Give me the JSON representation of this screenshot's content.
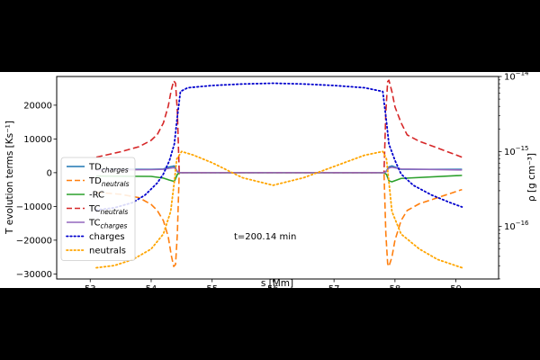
{
  "chart_data": {
    "type": "line",
    "title": "",
    "xlabel": "s [Mm]",
    "ylabel": "T evolution terms [Ks⁻¹]",
    "ylabel_right": "ρ [g cm⁻³]",
    "xlim": [
      52.45,
      59.7
    ],
    "ylim": [
      -31500,
      28500
    ],
    "ylim_right_log10": [
      -16.7,
      -14.0
    ],
    "x_ticks": [
      53,
      54,
      55,
      56,
      57,
      58,
      59
    ],
    "x_tick_labels": [
      "53",
      "54",
      "55",
      "56",
      "57",
      "58",
      "59"
    ],
    "y_ticks": [
      -30000,
      -20000,
      -10000,
      0,
      10000,
      20000
    ],
    "y_tick_labels": [
      "−30000",
      "−20000",
      "−10000",
      "0",
      "10000",
      "20000"
    ],
    "y_right_major_ticks_log10": [
      -16,
      -15,
      -14
    ],
    "y_right_tick_labels": [
      {
        "base": "10",
        "exp": "−16"
      },
      {
        "base": "10",
        "exp": "−15"
      },
      {
        "base": "10",
        "exp": "−14"
      }
    ],
    "grid": false,
    "legend_placement": "lower-left",
    "annotation": "t=200.14 min",
    "series": [
      {
        "name": "TD",
        "name_sub": "charges",
        "color": "#1f77b4",
        "dash": "solid",
        "axis": "left",
        "points": [
          [
            53.1,
            1000
          ],
          [
            54.0,
            1000
          ],
          [
            54.2,
            1100
          ],
          [
            54.3,
            1700
          ],
          [
            54.38,
            2000
          ],
          [
            54.43,
            300
          ],
          [
            54.45,
            0
          ],
          [
            57.8,
            0
          ],
          [
            57.85,
            300
          ],
          [
            57.9,
            1700
          ],
          [
            57.95,
            2000
          ],
          [
            58.1,
            1000
          ],
          [
            59.1,
            1000
          ]
        ]
      },
      {
        "name": "TD",
        "name_sub": "neutrals",
        "color": "#ff7f0e",
        "dash": "dashed",
        "axis": "left",
        "points": [
          [
            53.1,
            -5800
          ],
          [
            53.5,
            -6400
          ],
          [
            53.8,
            -7400
          ],
          [
            54.0,
            -9400
          ],
          [
            54.1,
            -11200
          ],
          [
            54.2,
            -14200
          ],
          [
            54.28,
            -19000
          ],
          [
            54.33,
            -24500
          ],
          [
            54.37,
            -27800
          ],
          [
            54.4,
            -27200
          ],
          [
            54.43,
            -18000
          ],
          [
            54.46,
            0
          ],
          [
            57.82,
            0
          ],
          [
            57.85,
            -18000
          ],
          [
            57.88,
            -27000
          ],
          [
            57.9,
            -27800
          ],
          [
            57.95,
            -25000
          ],
          [
            58.0,
            -20000
          ],
          [
            58.1,
            -14200
          ],
          [
            58.2,
            -11200
          ],
          [
            58.4,
            -9200
          ],
          [
            58.7,
            -7400
          ],
          [
            59.1,
            -5000
          ]
        ]
      },
      {
        "name": "-RC",
        "color": "#2ca02c",
        "dash": "solid",
        "axis": "left",
        "points": [
          [
            53.1,
            -1000
          ],
          [
            54.0,
            -1100
          ],
          [
            54.2,
            -1600
          ],
          [
            54.3,
            -2200
          ],
          [
            54.38,
            -2600
          ],
          [
            54.43,
            -500
          ],
          [
            54.46,
            0
          ],
          [
            57.82,
            0
          ],
          [
            57.86,
            -500
          ],
          [
            57.9,
            -2400
          ],
          [
            57.95,
            -2700
          ],
          [
            58.1,
            -1700
          ],
          [
            59.1,
            -800
          ]
        ]
      },
      {
        "name": "TC",
        "name_sub": "neutrals",
        "color": "#d62728",
        "dash": "dashed",
        "axis": "left",
        "points": [
          [
            53.1,
            4600
          ],
          [
            53.5,
            6200
          ],
          [
            53.8,
            7700
          ],
          [
            54.0,
            9600
          ],
          [
            54.1,
            11300
          ],
          [
            54.2,
            14700
          ],
          [
            54.28,
            19700
          ],
          [
            54.33,
            24500
          ],
          [
            54.37,
            27200
          ],
          [
            54.4,
            26500
          ],
          [
            54.43,
            18000
          ],
          [
            54.46,
            0
          ],
          [
            57.82,
            0
          ],
          [
            57.85,
            18000
          ],
          [
            57.88,
            27000
          ],
          [
            57.9,
            27400
          ],
          [
            57.95,
            24000
          ],
          [
            58.0,
            19500
          ],
          [
            58.1,
            14800
          ],
          [
            58.2,
            11200
          ],
          [
            58.4,
            9300
          ],
          [
            58.7,
            7300
          ],
          [
            59.1,
            4600
          ]
        ]
      },
      {
        "name": "TC",
        "name_sub": "charges",
        "color": "#9467bd",
        "dash": "solid",
        "axis": "left",
        "points": [
          [
            53.1,
            800
          ],
          [
            54.0,
            900
          ],
          [
            54.2,
            1000
          ],
          [
            54.3,
            1300
          ],
          [
            54.38,
            1500
          ],
          [
            54.43,
            400
          ],
          [
            54.46,
            0
          ],
          [
            57.82,
            0
          ],
          [
            57.86,
            400
          ],
          [
            57.9,
            1400
          ],
          [
            57.95,
            1600
          ],
          [
            58.1,
            1100
          ],
          [
            59.1,
            800
          ]
        ]
      },
      {
        "name": "charges",
        "color": "#0000cd",
        "dash": "dotted",
        "axis": "right",
        "scale": "log",
        "points": [
          [
            53.1,
            -15.78
          ],
          [
            53.4,
            -15.75
          ],
          [
            53.7,
            -15.68
          ],
          [
            53.9,
            -15.58
          ],
          [
            54.1,
            -15.42
          ],
          [
            54.2,
            -15.3
          ],
          [
            54.3,
            -15.12
          ],
          [
            54.38,
            -14.9
          ],
          [
            54.42,
            -14.6
          ],
          [
            54.48,
            -14.2
          ],
          [
            54.6,
            -14.15
          ],
          [
            55.0,
            -14.12
          ],
          [
            55.5,
            -14.1
          ],
          [
            56.0,
            -14.09
          ],
          [
            56.5,
            -14.1
          ],
          [
            57.0,
            -14.12
          ],
          [
            57.5,
            -14.15
          ],
          [
            57.8,
            -14.2
          ],
          [
            57.86,
            -14.6
          ],
          [
            57.9,
            -14.9
          ],
          [
            58.0,
            -15.12
          ],
          [
            58.1,
            -15.3
          ],
          [
            58.3,
            -15.45
          ],
          [
            58.6,
            -15.58
          ],
          [
            58.9,
            -15.68
          ],
          [
            59.1,
            -15.74
          ]
        ]
      },
      {
        "name": "neutrals",
        "color": "#ffa500",
        "dash": "dotted",
        "axis": "right",
        "scale": "log",
        "points": [
          [
            53.1,
            -16.55
          ],
          [
            53.4,
            -16.52
          ],
          [
            53.7,
            -16.44
          ],
          [
            54.0,
            -16.3
          ],
          [
            54.2,
            -16.1
          ],
          [
            54.32,
            -15.8
          ],
          [
            54.38,
            -15.4
          ],
          [
            54.42,
            -15.1
          ],
          [
            54.5,
            -15.0
          ],
          [
            54.7,
            -15.05
          ],
          [
            55.0,
            -15.15
          ],
          [
            55.5,
            -15.35
          ],
          [
            56.0,
            -15.45
          ],
          [
            56.5,
            -15.35
          ],
          [
            57.0,
            -15.2
          ],
          [
            57.5,
            -15.05
          ],
          [
            57.8,
            -15.0
          ],
          [
            57.86,
            -15.1
          ],
          [
            57.9,
            -15.4
          ],
          [
            57.95,
            -15.8
          ],
          [
            58.1,
            -16.1
          ],
          [
            58.4,
            -16.3
          ],
          [
            58.7,
            -16.44
          ],
          [
            59.1,
            -16.55
          ]
        ]
      }
    ]
  }
}
